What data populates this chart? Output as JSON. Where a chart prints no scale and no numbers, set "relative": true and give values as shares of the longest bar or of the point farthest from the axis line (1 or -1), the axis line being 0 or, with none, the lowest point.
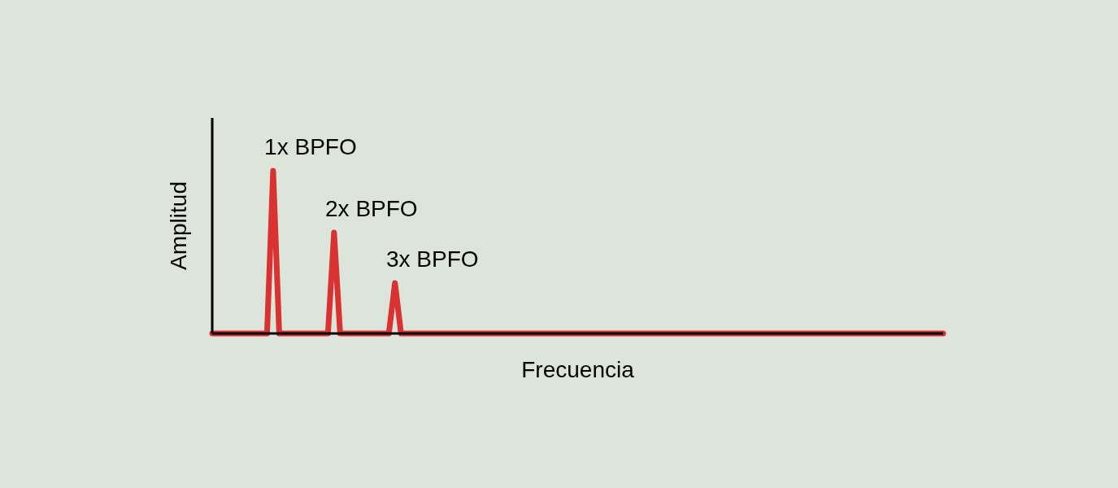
{
  "chart_data": {
    "type": "line",
    "relative": true,
    "xlabel": "Frecuencia",
    "ylabel": "Amplitud",
    "color": "#d93232",
    "line_style": "solid",
    "categories": [
      null,
      null,
      null,
      null,
      null,
      null,
      null,
      null,
      null,
      null,
      null,
      null,
      null,
      null,
      null,
      null,
      null,
      null,
      null,
      null,
      null,
      null,
      null,
      null,
      null,
      null,
      null,
      null,
      null,
      null,
      null,
      null,
      null,
      null,
      null,
      null,
      null,
      null,
      null,
      null,
      null,
      null,
      null,
      null,
      null,
      null,
      null,
      null,
      null,
      null,
      null,
      null,
      null,
      null,
      null,
      null,
      null,
      null,
      null,
      null,
      null,
      null,
      null,
      null,
      null,
      null,
      null,
      null,
      null,
      null,
      null,
      null,
      null,
      null,
      null,
      null,
      null,
      null,
      null,
      null,
      null,
      null,
      null,
      null,
      null,
      null,
      null,
      null,
      null,
      null,
      null,
      null,
      null,
      null,
      null,
      null,
      null,
      null,
      null,
      null,
      null,
      null,
      null,
      null,
      null,
      null,
      null,
      null,
      null,
      null,
      null,
      null,
      null,
      null,
      null,
      null,
      null,
      null,
      null,
      null,
      null
    ],
    "values": [
      0,
      0,
      0,
      0,
      0,
      0,
      0,
      0,
      0,
      0,
      1,
      0,
      0,
      0,
      0,
      0,
      0,
      0,
      0,
      0,
      0.62,
      0,
      0,
      0,
      0,
      0,
      0,
      0,
      0,
      0,
      0.31,
      0,
      0,
      0,
      0,
      0,
      0,
      0,
      0,
      0,
      0,
      0,
      0,
      0,
      0,
      0,
      0,
      0,
      0,
      0,
      0,
      0,
      0,
      0,
      0,
      0,
      0,
      0,
      0,
      0,
      0,
      0,
      0,
      0,
      0,
      0,
      0,
      0,
      0,
      0,
      0,
      0,
      0,
      0,
      0,
      0,
      0,
      0,
      0,
      0,
      0,
      0,
      0,
      0,
      0,
      0,
      0,
      0,
      0,
      0,
      0,
      0,
      0,
      0,
      0,
      0,
      0,
      0,
      0,
      0,
      0,
      0,
      0,
      0,
      0,
      0,
      0,
      0,
      0,
      0,
      0,
      0,
      0,
      0,
      0,
      0,
      0,
      0,
      0,
      0,
      0
    ],
    "annotations": [
      "1x BPFO",
      "2x BPFO",
      "3x BPFO"
    ]
  }
}
